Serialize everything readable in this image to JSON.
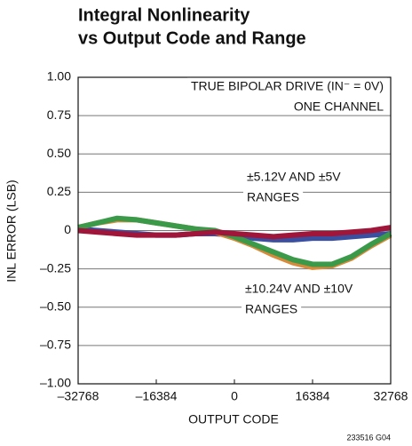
{
  "chart_data": {
    "type": "line",
    "title": [
      "Integral Nonlinearity",
      "vs Output Code and Range"
    ],
    "xlabel": "OUTPUT CODE",
    "ylabel": "INL ERROR (LSB)",
    "x": [
      -32768,
      -28672,
      -24576,
      -20480,
      -16384,
      -12288,
      -8192,
      -4096,
      0,
      4096,
      8192,
      12288,
      16384,
      20480,
      24576,
      28672,
      32768
    ],
    "series": [
      {
        "color": "#3a4fa0",
        "values": [
          0.01,
          0,
          -0.01,
          -0.02,
          -0.03,
          -0.03,
          -0.02,
          -0.02,
          -0.03,
          -0.05,
          -0.06,
          -0.06,
          -0.05,
          -0.05,
          -0.04,
          -0.03,
          -0.02
        ]
      },
      {
        "color": "#d9893a",
        "values": [
          0.02,
          0.05,
          0.07,
          0.07,
          0.05,
          0.03,
          0.01,
          -0.01,
          -0.05,
          -0.1,
          -0.16,
          -0.21,
          -0.24,
          -0.23,
          -0.18,
          -0.1,
          -0.03
        ]
      },
      {
        "color": "#3a9a4a",
        "values": [
          0.02,
          0.05,
          0.08,
          0.07,
          0.05,
          0.03,
          0.01,
          0,
          -0.04,
          -0.09,
          -0.14,
          -0.19,
          -0.22,
          -0.22,
          -0.17,
          -0.09,
          -0.02
        ]
      },
      {
        "color": "#a0163a",
        "values": [
          0,
          -0.01,
          -0.02,
          -0.03,
          -0.03,
          -0.03,
          -0.02,
          -0.01,
          -0.02,
          -0.03,
          -0.04,
          -0.03,
          -0.02,
          -0.02,
          -0.01,
          0,
          0.02
        ]
      }
    ],
    "xlim": [
      -32768,
      32768
    ],
    "xticks": [
      {
        "value": -32768,
        "label": "–32768"
      },
      {
        "value": -16384,
        "label": "–16384"
      },
      0,
      16384,
      32768
    ],
    "ylim": [
      -1,
      1
    ],
    "yticks": [
      {
        "value": -1,
        "label": "–1.00"
      },
      {
        "value": -0.75,
        "label": "–0.75"
      },
      {
        "value": -0.5,
        "label": "–0.50"
      },
      {
        "value": -0.25,
        "label": "–0.25"
      },
      0,
      {
        "value": 0.25,
        "label": "0.25"
      },
      {
        "value": 0.5,
        "label": "0.50"
      },
      {
        "value": 0.75,
        "label": "0.75"
      },
      {
        "value": 1,
        "label": "1.00"
      }
    ],
    "grid": true,
    "annotations": [
      "TRUE BIPOLAR DRIVE (IN⁻ = 0V)",
      "ONE CHANNEL",
      "±5.12V AND ±5V",
      "RANGES",
      "±10.24V AND ±10V",
      "RANGES"
    ],
    "footnote": "233516 G04"
  }
}
